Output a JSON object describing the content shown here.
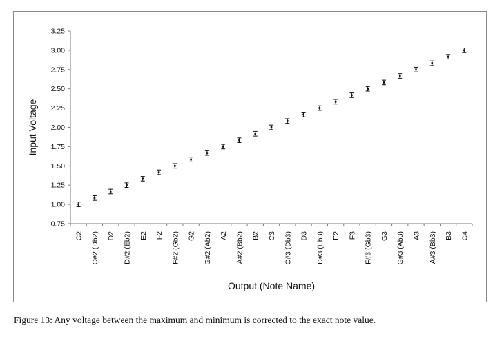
{
  "chart_data": {
    "type": "scatter",
    "xlabel": "Output (Note Name)",
    "ylabel": "Input Voltage",
    "ylim": [
      0.75,
      3.25
    ],
    "yticks": [
      "3.25",
      "3.00",
      "2.75",
      "2.50",
      "2.25",
      "2.00",
      "1.75",
      "1.50",
      "1.25",
      "1.00",
      "0.75"
    ],
    "categories": [
      "C2",
      "C#2 (Db2)",
      "D2",
      "D#2 (Eb2)",
      "E2",
      "F2",
      "F#2 (Gb2)",
      "G2",
      "G#2 (Ab2)",
      "A2",
      "A#2 (Bb2)",
      "B2",
      "C3",
      "C#3 (Db3)",
      "D3",
      "D#3 (Eb3)",
      "E2",
      "F3",
      "F#3 (Gb3)",
      "G3",
      "G#3 (Ab3)",
      "A3",
      "A#3 (Bb3)",
      "B3",
      "C4"
    ],
    "values": [
      1.0,
      1.083,
      1.167,
      1.25,
      1.333,
      1.417,
      1.5,
      1.583,
      1.667,
      1.75,
      1.833,
      1.917,
      2.0,
      2.083,
      2.167,
      2.25,
      2.333,
      2.417,
      2.5,
      2.583,
      2.667,
      2.75,
      2.833,
      2.917,
      3.0
    ],
    "error": 0.03,
    "grid": false,
    "legend": "none",
    "colors": {
      "marker": "#111111",
      "axis": "#777777",
      "frame": "#888888"
    }
  },
  "caption": "Figure 13: Any voltage between the maximum and minimum is corrected to the exact note value."
}
